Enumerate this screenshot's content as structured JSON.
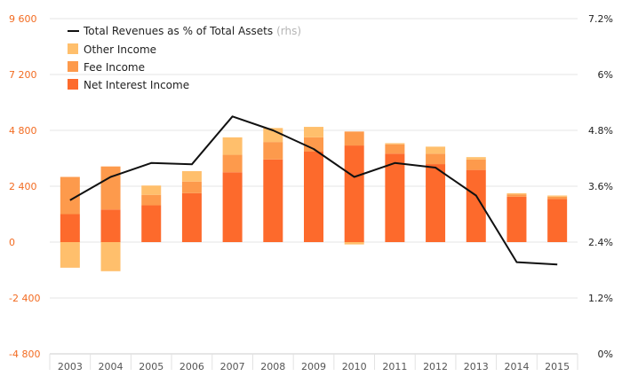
{
  "chart_data": {
    "type": "bar",
    "subtype": "stacked-bar-with-line",
    "categories": [
      "2003",
      "2004",
      "2005",
      "2006",
      "2007",
      "2008",
      "2009",
      "2010",
      "2011",
      "2012",
      "2013",
      "2014",
      "2015"
    ],
    "series": [
      {
        "name": "Net Interest Income",
        "color": "#fd6a2c",
        "values": [
          1200,
          1400,
          1580,
          2100,
          3000,
          3550,
          3900,
          4150,
          3800,
          3350,
          3100,
          1950,
          1850
        ]
      },
      {
        "name": "Fee Income",
        "color": "#fd9a4c",
        "values": [
          1600,
          1850,
          450,
          500,
          750,
          750,
          600,
          600,
          400,
          450,
          450,
          100,
          100
        ]
      },
      {
        "name": "Other Income",
        "color": "#ffbf6c",
        "values": [
          -1100,
          -1250,
          400,
          450,
          750,
          600,
          450,
          -100,
          50,
          300,
          100,
          50,
          50
        ]
      },
      {
        "name": "Total Revenues as % of Total Assets",
        "axis": "right",
        "color": "#111111",
        "values": [
          3.3,
          3.8,
          4.1,
          4.07,
          5.1,
          4.8,
          4.4,
          3.8,
          4.1,
          4.0,
          3.4,
          1.97,
          1.92
        ]
      }
    ],
    "legend_rhs_note": "(rhs)",
    "y_left": {
      "ticks": [
        "9 600",
        "7 200",
        "4 800",
        "2 400",
        "0",
        "-2 400",
        "-4 800"
      ],
      "ylim": [
        -4800,
        9600
      ],
      "color": "#f26b21"
    },
    "y_right": {
      "ticks": [
        "7.2%",
        "6%",
        "4.8%",
        "3.6%",
        "2.4%",
        "1.2%",
        "0%"
      ],
      "ylim": [
        0,
        7.2
      ]
    },
    "legend_position": "top-left",
    "grid": true
  }
}
